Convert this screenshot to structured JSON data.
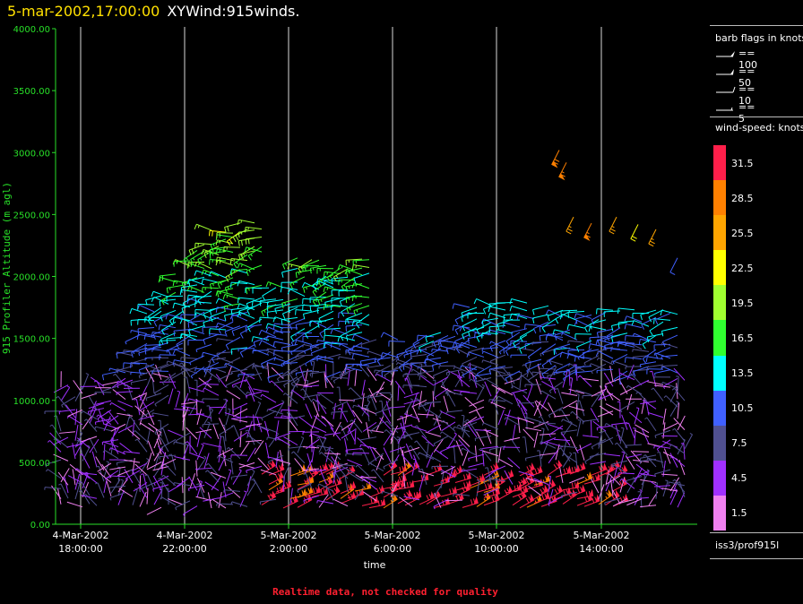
{
  "header": {
    "time": "5-mar-2002,17:00:00",
    "title": "XYWind:915winds."
  },
  "chart_data": {
    "type": "scatter",
    "ylabel": "915 Profiler Altitude (m agl)",
    "xlabel": "time",
    "ylim": [
      0,
      4000
    ],
    "yticks": [
      "0.00",
      "500.00",
      "1000.00",
      "1500.00",
      "2000.00",
      "2500.00",
      "3000.00",
      "3500.00",
      "4000.00"
    ],
    "xticks": [
      {
        "date": "4-Mar-2002",
        "time": "18:00:00"
      },
      {
        "date": "4-Mar-2002",
        "time": "22:00:00"
      },
      {
        "date": "5-Mar-2002",
        "time": "2:00:00"
      },
      {
        "date": "5-Mar-2002",
        "time": "6:00:00"
      },
      {
        "date": "5-Mar-2002",
        "time": "10:00:00"
      },
      {
        "date": "5-Mar-2002",
        "time": "14:00:00"
      }
    ],
    "grid": "vertical"
  },
  "legend": {
    "barb_title": "barb flags in knots",
    "barbs": [
      "== 100",
      "== 50",
      "== 10",
      "== 5"
    ],
    "speed_title": "wind-speed: knots",
    "speed_labels": [
      "31.5",
      "28.5",
      "25.5",
      "22.5",
      "19.5",
      "16.5",
      "13.5",
      "10.5",
      "7.5",
      "4.5",
      "1.5"
    ],
    "speed_colors": [
      "#ff1f4a",
      "#ff8000",
      "#ffa500",
      "#ffff00",
      "#a0ff30",
      "#30ff30",
      "#00ffff",
      "#4060ff",
      "#505090",
      "#a030ff",
      "#f080f0"
    ],
    "source": "iss3/prof915l"
  },
  "footer": {
    "warning": "Realtime data, not checked for quality"
  }
}
